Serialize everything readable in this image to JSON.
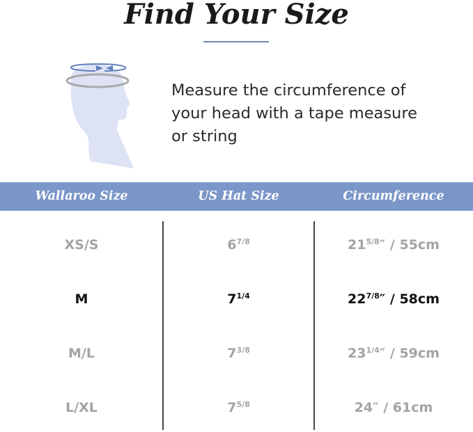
{
  "title": "Find Your Size",
  "instruction": "Measure the circumference of your head with a tape measure or string",
  "colors": {
    "accent": "#7b96c8",
    "highlight_text": "#111111",
    "muted_text": "#a3a3a3"
  },
  "icon": "head-measure-icon",
  "table": {
    "headers": [
      "Wallaroo Size",
      "US Hat Size",
      "Circumference"
    ],
    "rows": [
      {
        "size": "XS/S",
        "hat_whole": "6",
        "hat_frac": "7/8",
        "circ_whole": "21",
        "circ_frac": "5/8",
        "circ_rest": "″ / 55cm",
        "highlight": false
      },
      {
        "size": "M",
        "hat_whole": "7",
        "hat_frac": "1/4",
        "circ_whole": "22",
        "circ_frac": "7/8",
        "circ_rest": "″ / 58cm",
        "highlight": true
      },
      {
        "size": "M/L",
        "hat_whole": "7",
        "hat_frac": "3/8",
        "circ_whole": "23",
        "circ_frac": "1/4",
        "circ_rest": "″ / 59cm",
        "highlight": false
      },
      {
        "size": "L/XL",
        "hat_whole": "7",
        "hat_frac": "5/8",
        "circ_whole": "24",
        "circ_frac": "",
        "circ_rest": "″ / 61cm",
        "highlight": false
      }
    ]
  }
}
